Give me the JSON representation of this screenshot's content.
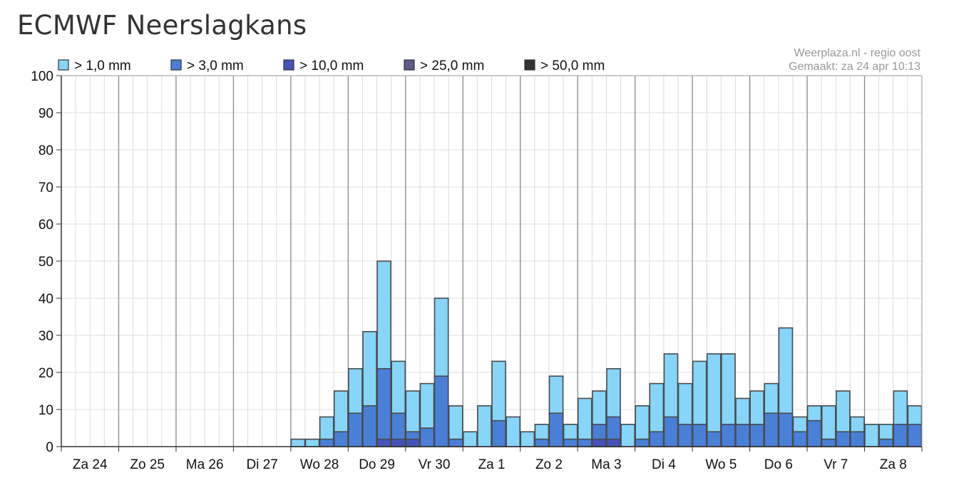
{
  "title": "ECMWF Neerslagkans",
  "credits": {
    "source": "Weerplaza.nl - regio oost",
    "made": "Gemaakt: za 24 apr 10:13"
  },
  "chart_data": {
    "type": "bar",
    "stacked": true,
    "grid": true,
    "legend_position": "top-left",
    "ylim": [
      0,
      100
    ],
    "yticks": [
      0,
      10,
      20,
      30,
      40,
      50,
      60,
      70,
      80,
      90,
      100
    ],
    "day_labels": [
      "Za 24",
      "Zo 25",
      "Ma 26",
      "Di 27",
      "Wo 28",
      "Do 29",
      "Vr 30",
      "Za 1",
      "Zo 2",
      "Ma 3",
      "Di 4",
      "Wo 5",
      "Do 6",
      "Vr 7",
      "Za 8"
    ],
    "bins_per_day": 4,
    "series": [
      {
        "name": "> 1,0 mm",
        "color": "#87d5f8",
        "values": [
          0,
          0,
          0,
          0,
          0,
          0,
          0,
          0,
          0,
          0,
          0,
          0,
          0,
          0,
          0,
          0,
          2,
          2,
          8,
          15,
          21,
          31,
          50,
          23,
          15,
          17,
          40,
          11,
          4,
          11,
          23,
          8,
          4,
          6,
          19,
          6,
          13,
          15,
          21,
          6,
          11,
          17,
          25,
          17,
          23,
          25,
          25,
          13,
          15,
          17,
          32,
          8,
          11,
          11,
          15,
          8,
          6,
          6,
          15,
          11
        ]
      },
      {
        "name": "> 3,0 mm",
        "color": "#4a7fd8",
        "values": [
          0,
          0,
          0,
          0,
          0,
          0,
          0,
          0,
          0,
          0,
          0,
          0,
          0,
          0,
          0,
          0,
          0,
          0,
          2,
          4,
          9,
          11,
          21,
          9,
          4,
          5,
          19,
          2,
          0,
          0,
          7,
          0,
          0,
          2,
          9,
          2,
          2,
          6,
          8,
          0,
          2,
          4,
          8,
          6,
          6,
          4,
          6,
          6,
          6,
          9,
          9,
          4,
          7,
          2,
          4,
          4,
          0,
          2,
          6,
          6
        ]
      },
      {
        "name": "> 10,0 mm",
        "color": "#4553b8",
        "values": [
          0,
          0,
          0,
          0,
          0,
          0,
          0,
          0,
          0,
          0,
          0,
          0,
          0,
          0,
          0,
          0,
          0,
          0,
          0,
          0,
          0,
          0,
          2,
          2,
          2,
          0,
          0,
          0,
          0,
          0,
          0,
          0,
          0,
          0,
          0,
          0,
          0,
          2,
          2,
          0,
          0,
          0,
          0,
          0,
          0,
          0,
          0,
          0,
          0,
          0,
          0,
          0,
          0,
          0,
          0,
          0,
          0,
          0,
          0,
          0
        ]
      },
      {
        "name": "> 25,0 mm",
        "color": "#5d5a8c",
        "values": []
      },
      {
        "name": "> 50,0 mm",
        "color": "#333333",
        "values": []
      }
    ]
  }
}
